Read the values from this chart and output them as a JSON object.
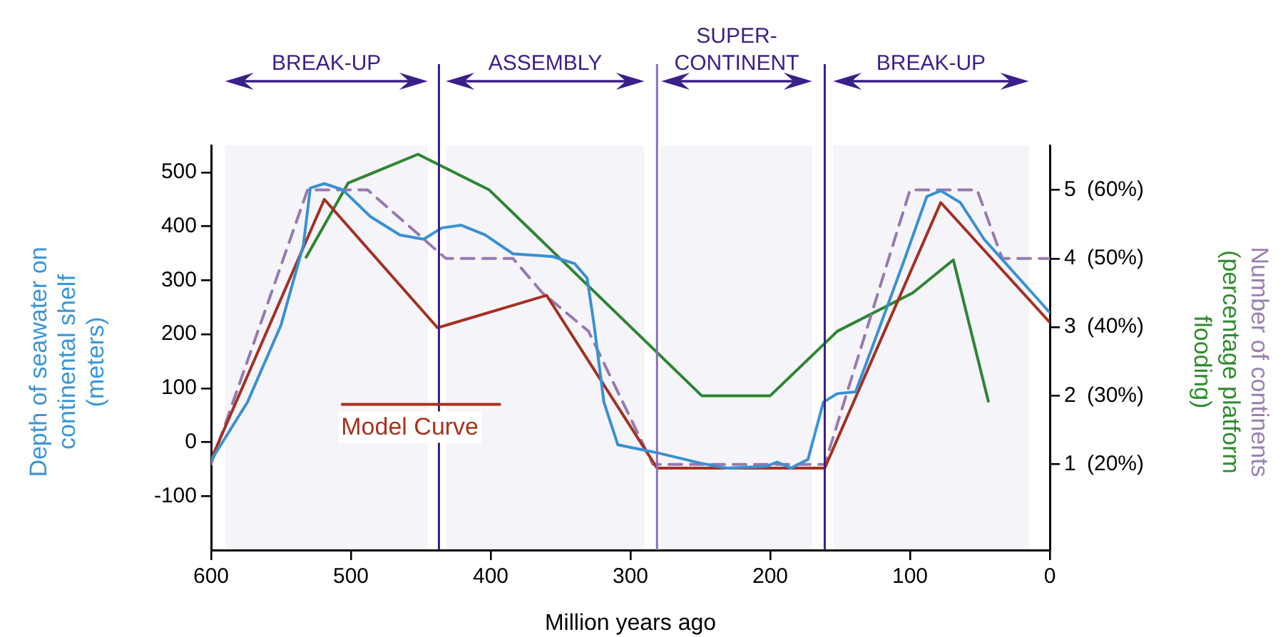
{
  "chart_data": {
    "type": "line",
    "xlabel": "Million years ago",
    "ylabel": "Depth of seawater on continental shelf (meters)",
    "y2label": "Number of continents (percentage platform flooding)",
    "xlim": [
      600,
      0
    ],
    "xticks": [
      600,
      500,
      400,
      300,
      200,
      100,
      0
    ],
    "ylim": [
      -200,
      550
    ],
    "yticks": [
      -100,
      0,
      100,
      200,
      300,
      400,
      500
    ],
    "y2lim": [
      -0.25,
      5.65
    ],
    "y2ticks": [
      1,
      2,
      3,
      4,
      5
    ],
    "y3lim": [
      7.5,
      66.5
    ],
    "y3ticks": [
      {
        "value": 20,
        "label": "(20%)"
      },
      {
        "value": 30,
        "label": "(30%)"
      },
      {
        "value": 40,
        "label": "(40%)"
      },
      {
        "value": 50,
        "label": "(50%)"
      },
      {
        "value": 60,
        "label": "(60%)"
      }
    ],
    "grid": false,
    "legend": "left",
    "marker": "none",
    "series": [
      {
        "color": "#3a96d6",
        "x": [
          600,
          574,
          550,
          534,
          529,
          519,
          506,
          486,
          465,
          448,
          435,
          421,
          404,
          384,
          356,
          340,
          331,
          326,
          319,
          309,
          282,
          248,
          231,
          203,
          195,
          185,
          173,
          162,
          152,
          139,
          125,
          105,
          88,
          78,
          64,
          47,
          0
        ],
        "values": [
          -34,
          74,
          217,
          365,
          471,
          479,
          468,
          418,
          384,
          376,
          397,
          402,
          384,
          349,
          344,
          331,
          304,
          217,
          74,
          -5,
          -19,
          -40,
          -48,
          -45,
          -37,
          -48,
          -32,
          74,
          90,
          93,
          190,
          331,
          455,
          466,
          444,
          376,
          240
        ]
      },
      {
        "name": "Model Curve",
        "color": "#a8321e",
        "x": [
          600,
          519,
          438,
          360,
          281,
          161,
          78,
          0
        ],
        "values": [
          -32,
          450,
          212,
          272,
          -48,
          -48,
          444,
          222
        ]
      },
      {
        "color": "#9b7fb0",
        "axis": "y2",
        "line_style": "dashed",
        "x": [
          600,
          531,
          488,
          432,
          384,
          363,
          330,
          284,
          161,
          100,
          52,
          34,
          0
        ],
        "values": [
          1,
          5,
          5,
          4,
          4,
          3.5,
          2.94,
          1,
          1,
          5,
          5,
          4,
          4
        ]
      },
      {
        "color": "#2e8b2e",
        "axis": "y3",
        "x": [
          532,
          502,
          452,
          401,
          249,
          200,
          152,
          98,
          69,
          44
        ],
        "values": [
          50.2,
          61,
          65.2,
          60,
          30,
          30,
          39.4,
          45,
          49.8,
          29.2
        ]
      }
    ],
    "ref_lines": [
      {
        "axis": "x",
        "value": 437,
        "color": "#3b1f8a"
      },
      {
        "axis": "x",
        "value": 281,
        "color": "#8a6fb8"
      },
      {
        "axis": "x",
        "value": 161,
        "color": "#3b1f8a"
      }
    ],
    "bands": [
      {
        "axis": "x",
        "from": 590,
        "to": 445,
        "label": "BREAK-UP",
        "color": "#3b1f8a"
      },
      {
        "axis": "x",
        "from": 432,
        "to": 290,
        "label": "ASSEMBLY",
        "color": "#3b1f8a"
      },
      {
        "axis": "x",
        "from": 278,
        "to": 170,
        "label": "SUPER-CONTINENT",
        "color": "#3b1f8a"
      },
      {
        "axis": "x",
        "from": 155,
        "to": 15,
        "label": "BREAK-UP",
        "color": "#3b1f8a"
      }
    ]
  }
}
